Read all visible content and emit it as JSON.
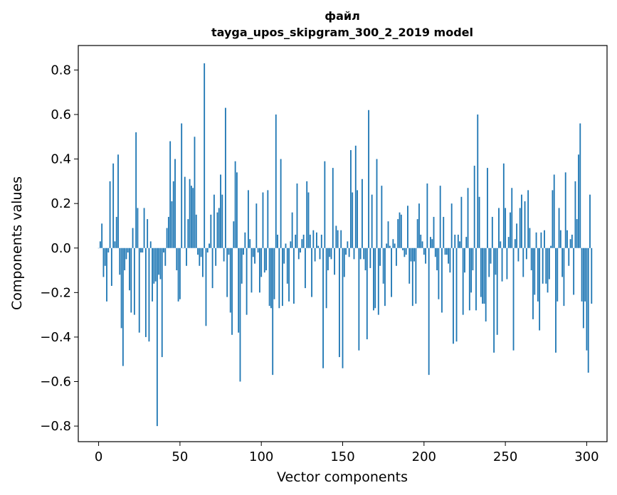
{
  "chart_data": {
    "type": "bar",
    "title": "файл",
    "subtitle": "tayga_upos_skipgram_300_2_2019 model",
    "xlabel": "Vector components",
    "ylabel": "Components values",
    "xlim": [
      -12.5,
      312.5
    ],
    "ylim": [
      -0.87,
      0.91
    ],
    "xticks": [
      0,
      50,
      100,
      150,
      200,
      250,
      300
    ],
    "xtick_labels": [
      "0",
      "50",
      "100",
      "150",
      "200",
      "250",
      "300"
    ],
    "yticks": [
      0.8,
      0.6,
      0.4,
      0.2,
      0.0,
      -0.2,
      -0.4,
      -0.6,
      -0.8
    ],
    "ytick_labels": [
      "0.8",
      "0.6",
      "0.4",
      "0.2",
      "0.0",
      "−0.2",
      "−0.4",
      "−0.6",
      "−0.8"
    ],
    "grid": false,
    "bar_color": "#1f77b4",
    "series": [
      {
        "values": [
          0.0,
          0.03,
          0.11,
          -0.13,
          -0.08,
          -0.24,
          -0.02,
          0.3,
          -0.17,
          0.38,
          0.03,
          0.14,
          0.42,
          -0.12,
          -0.36,
          -0.53,
          -0.1,
          -0.05,
          -0.02,
          -0.19,
          -0.29,
          0.09,
          -0.3,
          0.52,
          0.18,
          -0.38,
          -0.02,
          -0.02,
          0.18,
          -0.4,
          0.13,
          -0.42,
          0.03,
          -0.24,
          -0.16,
          -0.15,
          -0.8,
          -0.12,
          -0.14,
          -0.49,
          -0.02,
          -0.08,
          0.09,
          0.14,
          0.48,
          0.21,
          0.3,
          0.4,
          -0.1,
          -0.24,
          -0.23,
          0.56,
          0.0,
          0.32,
          -0.08,
          0.13,
          0.31,
          0.28,
          0.27,
          0.5,
          0.15,
          -0.03,
          -0.08,
          -0.04,
          -0.13,
          0.83,
          -0.35,
          -0.02,
          0.02,
          0.15,
          -0.18,
          0.24,
          -0.08,
          0.16,
          0.18,
          0.33,
          0.24,
          -0.06,
          0.63,
          -0.22,
          -0.03,
          -0.29,
          -0.39,
          0.12,
          0.39,
          0.34,
          -0.38,
          -0.6,
          -0.16,
          -0.03,
          0.07,
          -0.3,
          0.26,
          0.04,
          -0.2,
          -0.04,
          -0.07,
          0.2,
          -0.02,
          -0.2,
          -0.13,
          0.25,
          -0.11,
          -0.1,
          0.26,
          -0.26,
          -0.27,
          -0.57,
          -0.23,
          0.6,
          0.06,
          -0.27,
          0.4,
          -0.26,
          -0.07,
          0.02,
          -0.16,
          -0.24,
          0.03,
          0.16,
          -0.25,
          0.06,
          0.29,
          -0.05,
          -0.02,
          0.04,
          0.06,
          -0.18,
          0.3,
          0.25,
          0.06,
          -0.22,
          0.08,
          -0.06,
          0.07,
          0.01,
          -0.05,
          0.06,
          -0.54,
          0.39,
          -0.27,
          -0.1,
          -0.04,
          -0.05,
          0.36,
          -0.12,
          0.1,
          0.08,
          -0.49,
          0.08,
          -0.54,
          -0.13,
          -0.03,
          0.03,
          -0.04,
          0.44,
          0.25,
          -0.05,
          0.46,
          0.26,
          -0.46,
          -0.05,
          0.31,
          -0.05,
          -0.1,
          -0.41,
          0.62,
          -0.09,
          0.24,
          -0.28,
          -0.27,
          0.4,
          -0.3,
          -0.08,
          0.28,
          -0.16,
          -0.26,
          0.02,
          0.12,
          0.01,
          -0.22,
          0.04,
          0.02,
          -0.08,
          0.13,
          0.16,
          0.15,
          -0.01,
          -0.04,
          -0.03,
          0.19,
          -0.16,
          -0.06,
          -0.26,
          -0.06,
          -0.25,
          0.13,
          0.2,
          0.06,
          0.03,
          -0.03,
          -0.07,
          0.29,
          -0.57,
          0.05,
          0.04,
          0.14,
          -0.04,
          -0.1,
          -0.23,
          0.28,
          -0.29,
          0.14,
          -0.03,
          -0.03,
          -0.07,
          -0.11,
          0.2,
          -0.43,
          0.06,
          -0.42,
          0.06,
          0.03,
          0.23,
          -0.3,
          -0.11,
          0.05,
          0.27,
          -0.28,
          -0.2,
          -0.1,
          0.37,
          -0.28,
          0.6,
          0.23,
          -0.22,
          -0.25,
          -0.25,
          -0.33,
          0.36,
          -0.13,
          -0.07,
          0.14,
          -0.47,
          -0.12,
          -0.39,
          0.18,
          0.03,
          -0.15,
          0.38,
          0.18,
          -0.14,
          0.05,
          0.16,
          0.27,
          -0.46,
          0.04,
          0.11,
          -0.06,
          0.18,
          0.24,
          -0.13,
          0.21,
          -0.05,
          0.26,
          0.09,
          -0.1,
          -0.32,
          -0.21,
          0.07,
          -0.24,
          -0.37,
          0.07,
          -0.16,
          0.08,
          -0.16,
          -0.2,
          -0.14,
          0.01,
          0.26,
          0.33,
          -0.47,
          -0.24,
          0.18,
          0.08,
          -0.13,
          -0.26,
          0.34,
          0.08,
          -0.08,
          0.04,
          0.06,
          -0.21,
          0.3,
          0.13,
          0.42,
          0.56,
          -0.24,
          -0.36,
          -0.24,
          -0.46,
          -0.56,
          0.24,
          -0.25
        ]
      }
    ]
  }
}
